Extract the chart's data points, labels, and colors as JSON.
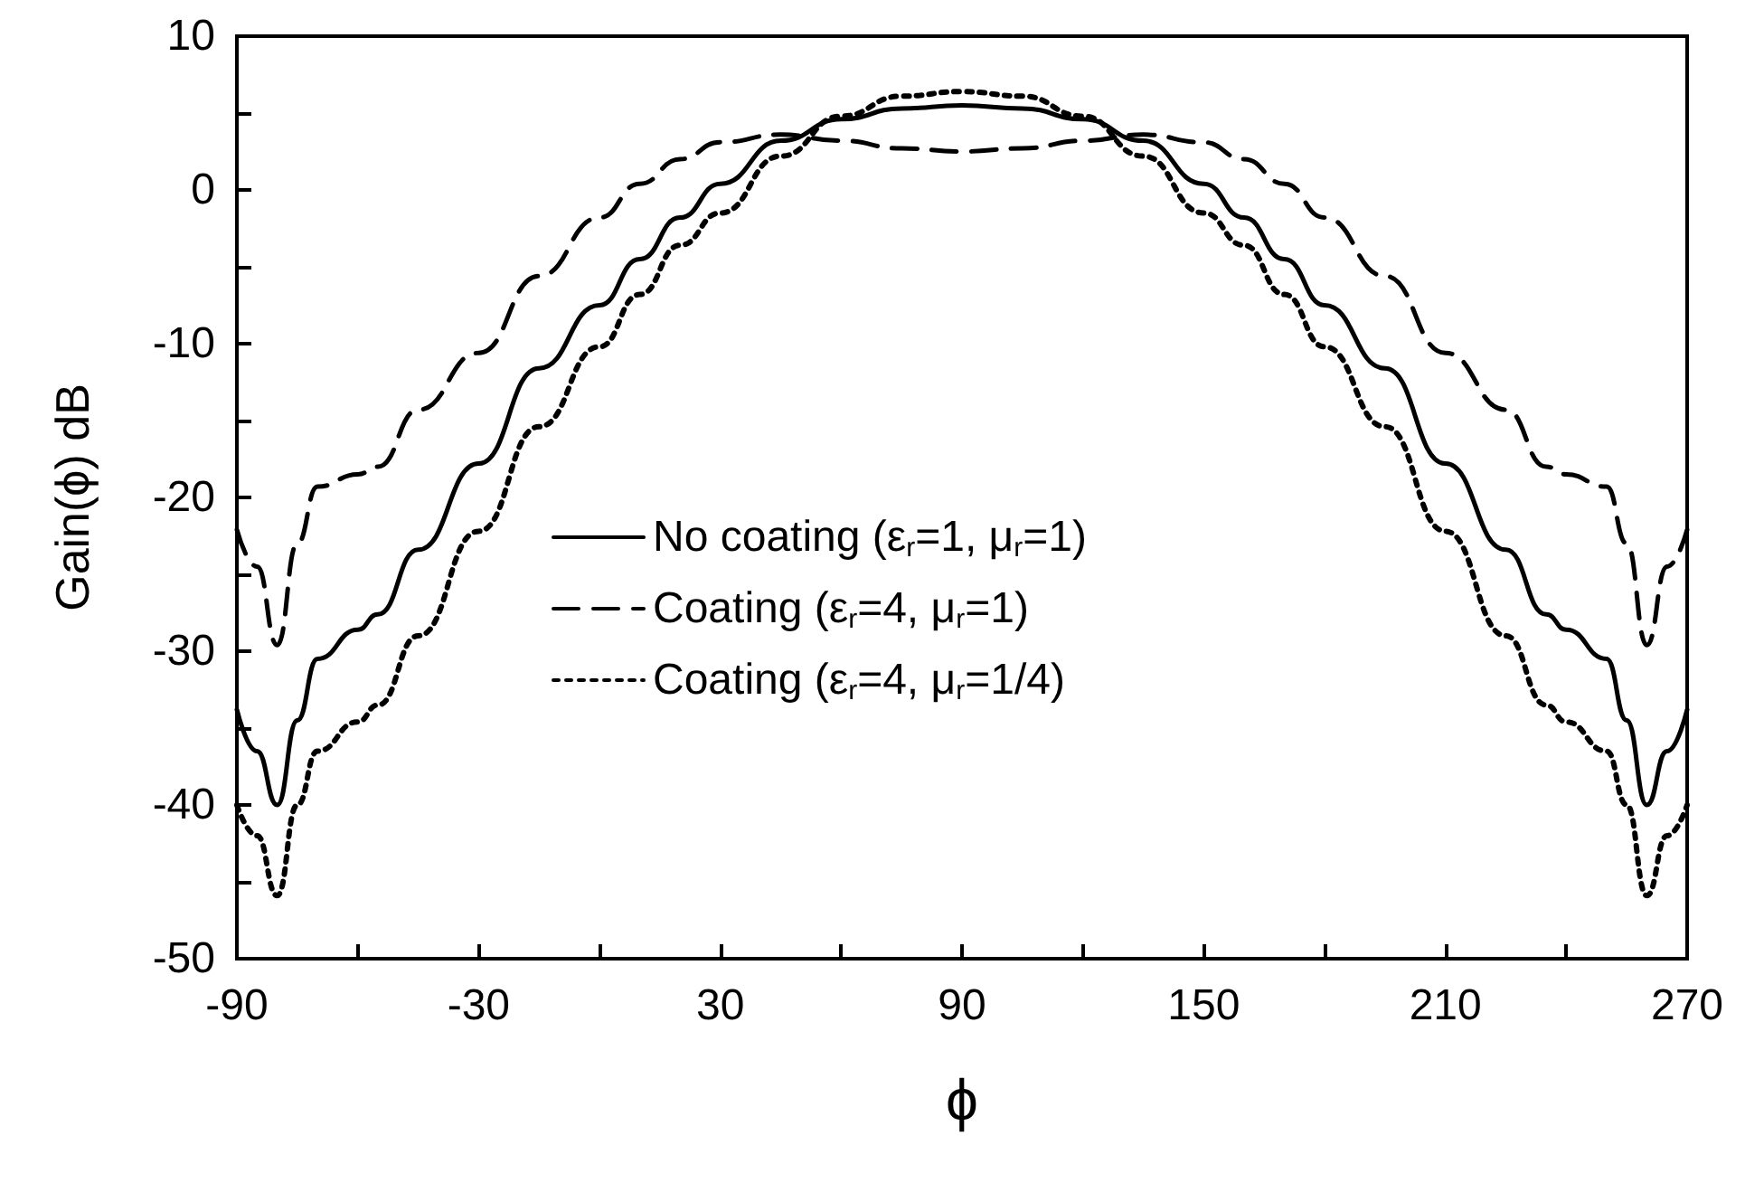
{
  "chart_data": {
    "type": "line",
    "xlabel": "ϕ",
    "ylabel": "Gain(ϕ) dB",
    "x": [
      -90,
      -85,
      -80,
      -75,
      -70,
      -60,
      -55,
      -45,
      -30,
      -15,
      0,
      10,
      20,
      30,
      45,
      60,
      75,
      90,
      105,
      120,
      135,
      150,
      160,
      170,
      180,
      195,
      210,
      225,
      235,
      240,
      250,
      255,
      260,
      265,
      270
    ],
    "series": [
      {
        "name": "No coating (ε$_{r}$=1, μ$_{r}$=1)",
        "color": "#000000",
        "line_style": "solid",
        "values": [
          -33.8,
          -36.5,
          -40,
          -34.5,
          -30.5,
          -28.6,
          -27.6,
          -23.4,
          -17.8,
          -11.6,
          -7.5,
          -4.5,
          -1.8,
          0.4,
          3.2,
          4.6,
          5.3,
          5.5,
          5.3,
          4.6,
          3.2,
          0.4,
          -1.8,
          -4.5,
          -7.5,
          -11.6,
          -17.8,
          -23.4,
          -27.6,
          -28.6,
          -30.5,
          -34.5,
          -40,
          -36.5,
          -33.8
        ]
      },
      {
        "name": "Coating (ε$_{r}$=4, μ$_{r}$=1)",
        "color": "#000000",
        "line_style": "dashed",
        "values": [
          -22.1,
          -24.5,
          -29.6,
          -23,
          -19.3,
          -18.5,
          -18,
          -14.3,
          -10.6,
          -5.6,
          -1.8,
          0.4,
          2,
          3.1,
          3.6,
          3.2,
          2.7,
          2.5,
          2.7,
          3.2,
          3.6,
          3.1,
          2,
          0.4,
          -1.8,
          -5.6,
          -10.6,
          -14.3,
          -18,
          -18.5,
          -19.3,
          -23,
          -29.6,
          -24.5,
          -22.1
        ]
      },
      {
        "name": "Coating (ε$_{r}$=4, μ$_{r}$=1/4)",
        "color": "#000000",
        "line_style": "dotted",
        "values": [
          -40,
          -42,
          -45.9,
          -40,
          -36.5,
          -34.6,
          -33.5,
          -29,
          -22.2,
          -15.4,
          -10.2,
          -6.8,
          -3.6,
          -1.5,
          2.2,
          4.8,
          6.1,
          6.4,
          6.1,
          4.8,
          2.2,
          -1.5,
          -3.6,
          -6.8,
          -10.2,
          -15.4,
          -22.2,
          -29,
          -33.5,
          -34.6,
          -36.5,
          -40,
          -45.9,
          -42,
          -40
        ]
      }
    ],
    "xlim": [
      -90,
      270
    ],
    "xticks": [
      -90,
      {
        "value": -60,
        "label": null
      },
      -30,
      {
        "value": 0,
        "label": null
      },
      30,
      {
        "value": 60,
        "label": null
      },
      90,
      {
        "value": 120,
        "label": null
      },
      150,
      {
        "value": 180,
        "label": null
      },
      210,
      {
        "value": 240,
        "label": null
      },
      270
    ],
    "ylim": [
      -50,
      10
    ],
    "yticks": [
      -50,
      {
        "value": -45,
        "label": null
      },
      -40,
      {
        "value": -35,
        "label": null
      },
      -30,
      {
        "value": -25,
        "label": null
      },
      -20,
      {
        "value": -15,
        "label": null
      },
      -10,
      {
        "value": -5,
        "label": null
      },
      0,
      {
        "value": 5,
        "label": null
      },
      10
    ],
    "grid": false,
    "legend": "bottom",
    "marker": "none"
  }
}
